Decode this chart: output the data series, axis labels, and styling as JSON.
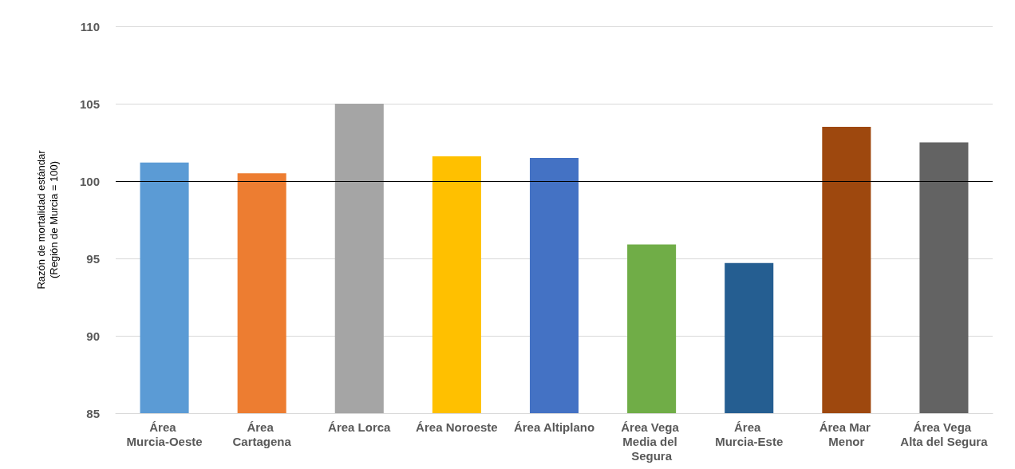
{
  "chart_data": {
    "type": "bar",
    "ylabel": "Razón de mortalidad estándar\n(Región de Murcia = 100)",
    "categories": [
      "Área Murcia-Oeste",
      "Área Cartagena",
      "Área Lorca",
      "Área Noroeste",
      "Área Altiplano",
      "Área Vega Media del Segura",
      "Área Murcia-Este",
      "Área Mar Menor",
      "Área Vega Alta del Segura"
    ],
    "values": [
      101.2,
      100.5,
      105.0,
      101.6,
      101.5,
      95.9,
      94.7,
      103.5,
      102.5
    ],
    "colors": [
      "#5b9bd5",
      "#ed7d31",
      "#a5a5a5",
      "#ffc000",
      "#4472c4",
      "#70ad47",
      "#255e91",
      "#9e480e",
      "#636363"
    ],
    "ylim": [
      85,
      110
    ],
    "yticks": [
      85,
      90,
      95,
      100,
      105,
      110
    ],
    "grid": "y",
    "ref_lines": [
      {
        "axis": "y",
        "value": 100,
        "color": "#000000"
      }
    ]
  }
}
